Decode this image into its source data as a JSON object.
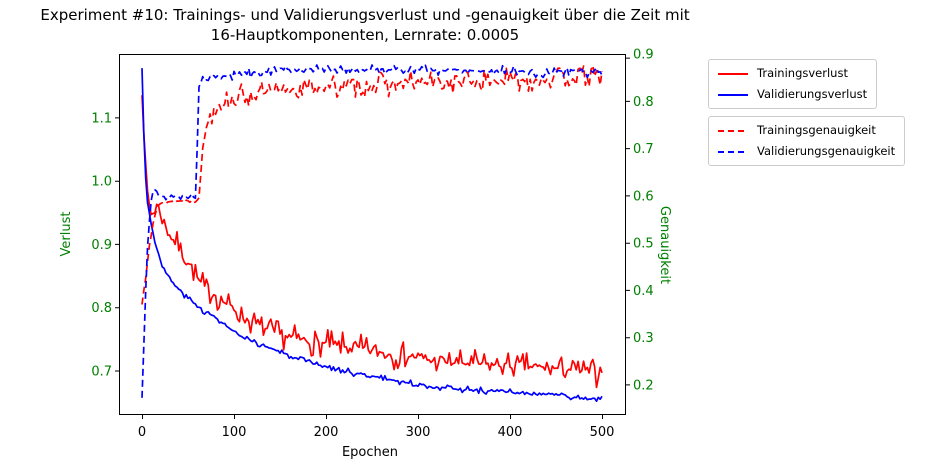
{
  "title": {
    "line1": "Experiment #10: Trainings- und Validierungsverlust und -genauigkeit über die Zeit mit",
    "line2": "16-Hauptkomponenten, Lernrate: 0.0005"
  },
  "axes": {
    "x": {
      "label": "Epochen",
      "tick_labels": [
        "0",
        "100",
        "200",
        "300",
        "400",
        "500"
      ],
      "color": "#000000"
    },
    "left": {
      "label": "Verlust",
      "tick_labels": [
        "0.7",
        "0.8",
        "0.9",
        "1.0",
        "1.1"
      ],
      "color": "#008000"
    },
    "right": {
      "label": "Genauigkeit",
      "tick_labels": [
        "0.2",
        "0.3",
        "0.4",
        "0.5",
        "0.6",
        "0.7",
        "0.8",
        "0.9"
      ],
      "color": "#008000"
    }
  },
  "chart_data": {
    "type": "line",
    "title": "Experiment #10: Trainings- und Validierungsverlust und -genauigkeit über die Zeit mit 16-Hauptkomponenten, Lernrate: 0.0005",
    "xlabel": "Epochen",
    "ylabel_left": "Verlust",
    "ylabel_right": "Genauigkeit",
    "xlim": [
      -25,
      525
    ],
    "ylim_left": [
      0.632,
      1.201
    ],
    "ylim_right": [
      0.1385,
      0.9002
    ],
    "grid": false,
    "legend_position": "outside-right",
    "x_ticks": [
      0,
      100,
      200,
      300,
      400,
      500
    ],
    "left_ticks": [
      0.7,
      0.8,
      0.9,
      1.0,
      1.1
    ],
    "right_ticks": [
      0.2,
      0.3,
      0.4,
      0.5,
      0.6,
      0.7,
      0.8,
      0.9
    ],
    "series": [
      {
        "name": "Trainingsverlust",
        "axis": "left",
        "color": "#ff0000",
        "dash": false,
        "seed": 7,
        "noise_before": 0.003,
        "noise_after": 0.011,
        "noise_switch_epoch": 10,
        "keypoints": [
          [
            0,
            1.142
          ],
          [
            2,
            1.08
          ],
          [
            4,
            1.022
          ],
          [
            6,
            0.985
          ],
          [
            8,
            0.962
          ],
          [
            10,
            0.948
          ],
          [
            13,
            0.95
          ],
          [
            16,
            0.963
          ],
          [
            19,
            0.954
          ],
          [
            23,
            0.938
          ],
          [
            27,
            0.924
          ],
          [
            32,
            0.911
          ],
          [
            38,
            0.899
          ],
          [
            44,
            0.886
          ],
          [
            50,
            0.873
          ],
          [
            56,
            0.859
          ],
          [
            63,
            0.84
          ],
          [
            70,
            0.83
          ],
          [
            80,
            0.82
          ],
          [
            90,
            0.808
          ],
          [
            100,
            0.798
          ],
          [
            107,
            0.787
          ],
          [
            115,
            0.781
          ],
          [
            125,
            0.774
          ],
          [
            135,
            0.766
          ],
          [
            145,
            0.76
          ],
          [
            155,
            0.756
          ],
          [
            165,
            0.752
          ],
          [
            175,
            0.749
          ],
          [
            185,
            0.746
          ],
          [
            195,
            0.744
          ],
          [
            210,
            0.74
          ],
          [
            225,
            0.737
          ],
          [
            240,
            0.735
          ],
          [
            255,
            0.731
          ],
          [
            270,
            0.726
          ],
          [
            285,
            0.724
          ],
          [
            300,
            0.722
          ],
          [
            315,
            0.716
          ],
          [
            330,
            0.714
          ],
          [
            350,
            0.712
          ],
          [
            370,
            0.711
          ],
          [
            390,
            0.709
          ],
          [
            410,
            0.708
          ],
          [
            430,
            0.706
          ],
          [
            450,
            0.704
          ],
          [
            470,
            0.702
          ],
          [
            485,
            0.699
          ],
          [
            497,
            0.697
          ],
          [
            500,
            0.71
          ]
        ]
      },
      {
        "name": "Validierungsverlust",
        "axis": "left",
        "color": "#0000ff",
        "dash": false,
        "seed": 3,
        "noise_before": 0.0025,
        "noise_after": 0.0025,
        "noise_switch_epoch": 0,
        "keypoints": [
          [
            0,
            1.178
          ],
          [
            2,
            1.08
          ],
          [
            4,
            1.005
          ],
          [
            6,
            0.97
          ],
          [
            8,
            0.948
          ],
          [
            10,
            0.932
          ],
          [
            14,
            0.905
          ],
          [
            18,
            0.885
          ],
          [
            22,
            0.868
          ],
          [
            26,
            0.855
          ],
          [
            30,
            0.846
          ],
          [
            36,
            0.835
          ],
          [
            42,
            0.826
          ],
          [
            48,
            0.818
          ],
          [
            54,
            0.81
          ],
          [
            60,
            0.803
          ],
          [
            70,
            0.793
          ],
          [
            80,
            0.784
          ],
          [
            90,
            0.773
          ],
          [
            100,
            0.762
          ],
          [
            110,
            0.752
          ],
          [
            120,
            0.746
          ],
          [
            130,
            0.741
          ],
          [
            140,
            0.736
          ],
          [
            150,
            0.73
          ],
          [
            160,
            0.724
          ],
          [
            170,
            0.718
          ],
          [
            180,
            0.714
          ],
          [
            190,
            0.71
          ],
          [
            200,
            0.707
          ],
          [
            215,
            0.702
          ],
          [
            230,
            0.697
          ],
          [
            245,
            0.693
          ],
          [
            260,
            0.689
          ],
          [
            275,
            0.685
          ],
          [
            290,
            0.681
          ],
          [
            305,
            0.677
          ],
          [
            320,
            0.675
          ],
          [
            340,
            0.672
          ],
          [
            360,
            0.67
          ],
          [
            380,
            0.668
          ],
          [
            400,
            0.667
          ],
          [
            415,
            0.665
          ],
          [
            430,
            0.662
          ],
          [
            445,
            0.664
          ],
          [
            460,
            0.66
          ],
          [
            475,
            0.657
          ],
          [
            490,
            0.655
          ],
          [
            500,
            0.657
          ]
        ]
      },
      {
        "name": "Trainingsgenauigkeit",
        "axis": "right",
        "color": "#ff0000",
        "dash": true,
        "seed": 13,
        "noise_before": 0.003,
        "noise_after": 0.013,
        "noise_switch_epoch": 68,
        "keypoints": [
          [
            0,
            0.37
          ],
          [
            4,
            0.43
          ],
          [
            8,
            0.5
          ],
          [
            12,
            0.545
          ],
          [
            16,
            0.572
          ],
          [
            20,
            0.583
          ],
          [
            30,
            0.588
          ],
          [
            40,
            0.589
          ],
          [
            50,
            0.59
          ],
          [
            62,
            0.592
          ],
          [
            64,
            0.65
          ],
          [
            66,
            0.7
          ],
          [
            68,
            0.73
          ],
          [
            71,
            0.755
          ],
          [
            75,
            0.775
          ],
          [
            80,
            0.79
          ],
          [
            90,
            0.8
          ],
          [
            100,
            0.806
          ],
          [
            110,
            0.81
          ],
          [
            125,
            0.816
          ],
          [
            140,
            0.82
          ],
          [
            160,
            0.825
          ],
          [
            180,
            0.828
          ],
          [
            200,
            0.831
          ],
          [
            220,
            0.832
          ],
          [
            240,
            0.833
          ],
          [
            260,
            0.836
          ],
          [
            280,
            0.837
          ],
          [
            300,
            0.839
          ],
          [
            320,
            0.84
          ],
          [
            340,
            0.841
          ],
          [
            360,
            0.842
          ],
          [
            380,
            0.843
          ],
          [
            400,
            0.845
          ],
          [
            420,
            0.846
          ],
          [
            440,
            0.847
          ],
          [
            460,
            0.848
          ],
          [
            480,
            0.851
          ],
          [
            497,
            0.853
          ],
          [
            500,
            0.86
          ]
        ]
      },
      {
        "name": "Validierungsgenauigkeit",
        "axis": "right",
        "color": "#0000ff",
        "dash": true,
        "seed": 5,
        "noise_before": 0.003,
        "noise_after": 0.005,
        "noise_switch_epoch": 62,
        "keypoints": [
          [
            0,
            0.172
          ],
          [
            2,
            0.28
          ],
          [
            4,
            0.4
          ],
          [
            6,
            0.49
          ],
          [
            8,
            0.55
          ],
          [
            10,
            0.59
          ],
          [
            12,
            0.608
          ],
          [
            14,
            0.613
          ],
          [
            16,
            0.606
          ],
          [
            20,
            0.598
          ],
          [
            30,
            0.598
          ],
          [
            40,
            0.599
          ],
          [
            50,
            0.598
          ],
          [
            59,
            0.599
          ],
          [
            60,
            0.7
          ],
          [
            61,
            0.8
          ],
          [
            62,
            0.832
          ],
          [
            64,
            0.84
          ],
          [
            68,
            0.845
          ],
          [
            75,
            0.848
          ],
          [
            85,
            0.852
          ],
          [
            100,
            0.856
          ],
          [
            120,
            0.86
          ],
          [
            140,
            0.864
          ],
          [
            160,
            0.867
          ],
          [
            180,
            0.869
          ],
          [
            200,
            0.868
          ],
          [
            220,
            0.868
          ],
          [
            240,
            0.866
          ],
          [
            260,
            0.868
          ],
          [
            280,
            0.867
          ],
          [
            300,
            0.868
          ],
          [
            320,
            0.866
          ],
          [
            340,
            0.867
          ],
          [
            360,
            0.865
          ],
          [
            380,
            0.864
          ],
          [
            400,
            0.866
          ],
          [
            415,
            0.862
          ],
          [
            433,
            0.855
          ],
          [
            447,
            0.862
          ],
          [
            460,
            0.864
          ],
          [
            472,
            0.866
          ],
          [
            485,
            0.861
          ],
          [
            500,
            0.862
          ]
        ]
      }
    ]
  },
  "legend": {
    "loss_group": [
      "Trainingsverlust",
      "Validierungsverlust"
    ],
    "accuracy_group": [
      "Trainingsgenauigkeit",
      "Validierungsgenauigkeit"
    ]
  }
}
